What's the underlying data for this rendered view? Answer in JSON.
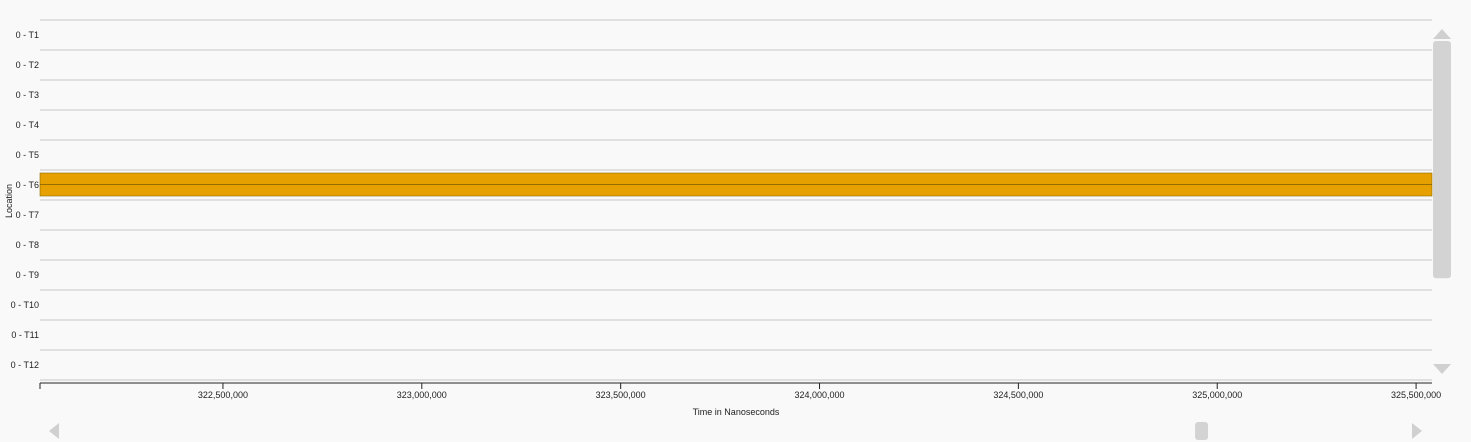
{
  "y_axis_label": "Location",
  "x_axis_label": "Time in Nanoseconds",
  "rows": [
    "0 - T1",
    "0 - T2",
    "0 - T3",
    "0 - T4",
    "0 - T5",
    "0 - T6",
    "0 - T7",
    "0 - T8",
    "0 - T9",
    "0 - T10",
    "0 - T11",
    "0 - T12"
  ],
  "x_range": [
    322040000,
    325540000
  ],
  "ticks": [
    {
      "value": 322500000,
      "label": "322,500,000"
    },
    {
      "value": 323000000,
      "label": "323,000,000"
    },
    {
      "value": 323500000,
      "label": "323,500,000"
    },
    {
      "value": 324000000,
      "label": "324,000,000"
    },
    {
      "value": 324500000,
      "label": "324,500,000"
    },
    {
      "value": 325000000,
      "label": "325,000,000"
    },
    {
      "value": 325500000,
      "label": "325,500,000"
    }
  ],
  "events": [
    {
      "row": "0 - T6",
      "start": 322040000,
      "end": 325540000,
      "color": "#e6a100"
    }
  ],
  "colors": {
    "event_fill": "#e6a100",
    "row_line": "#d8d8d8",
    "scrollbar": "#d3d3d3"
  },
  "vertical_scrollbar": {
    "thumb_start_fraction": 0.0,
    "thumb_size_fraction": 0.73
  },
  "horizontal_scrollbar": {
    "thumb_position_fraction": 0.85
  }
}
